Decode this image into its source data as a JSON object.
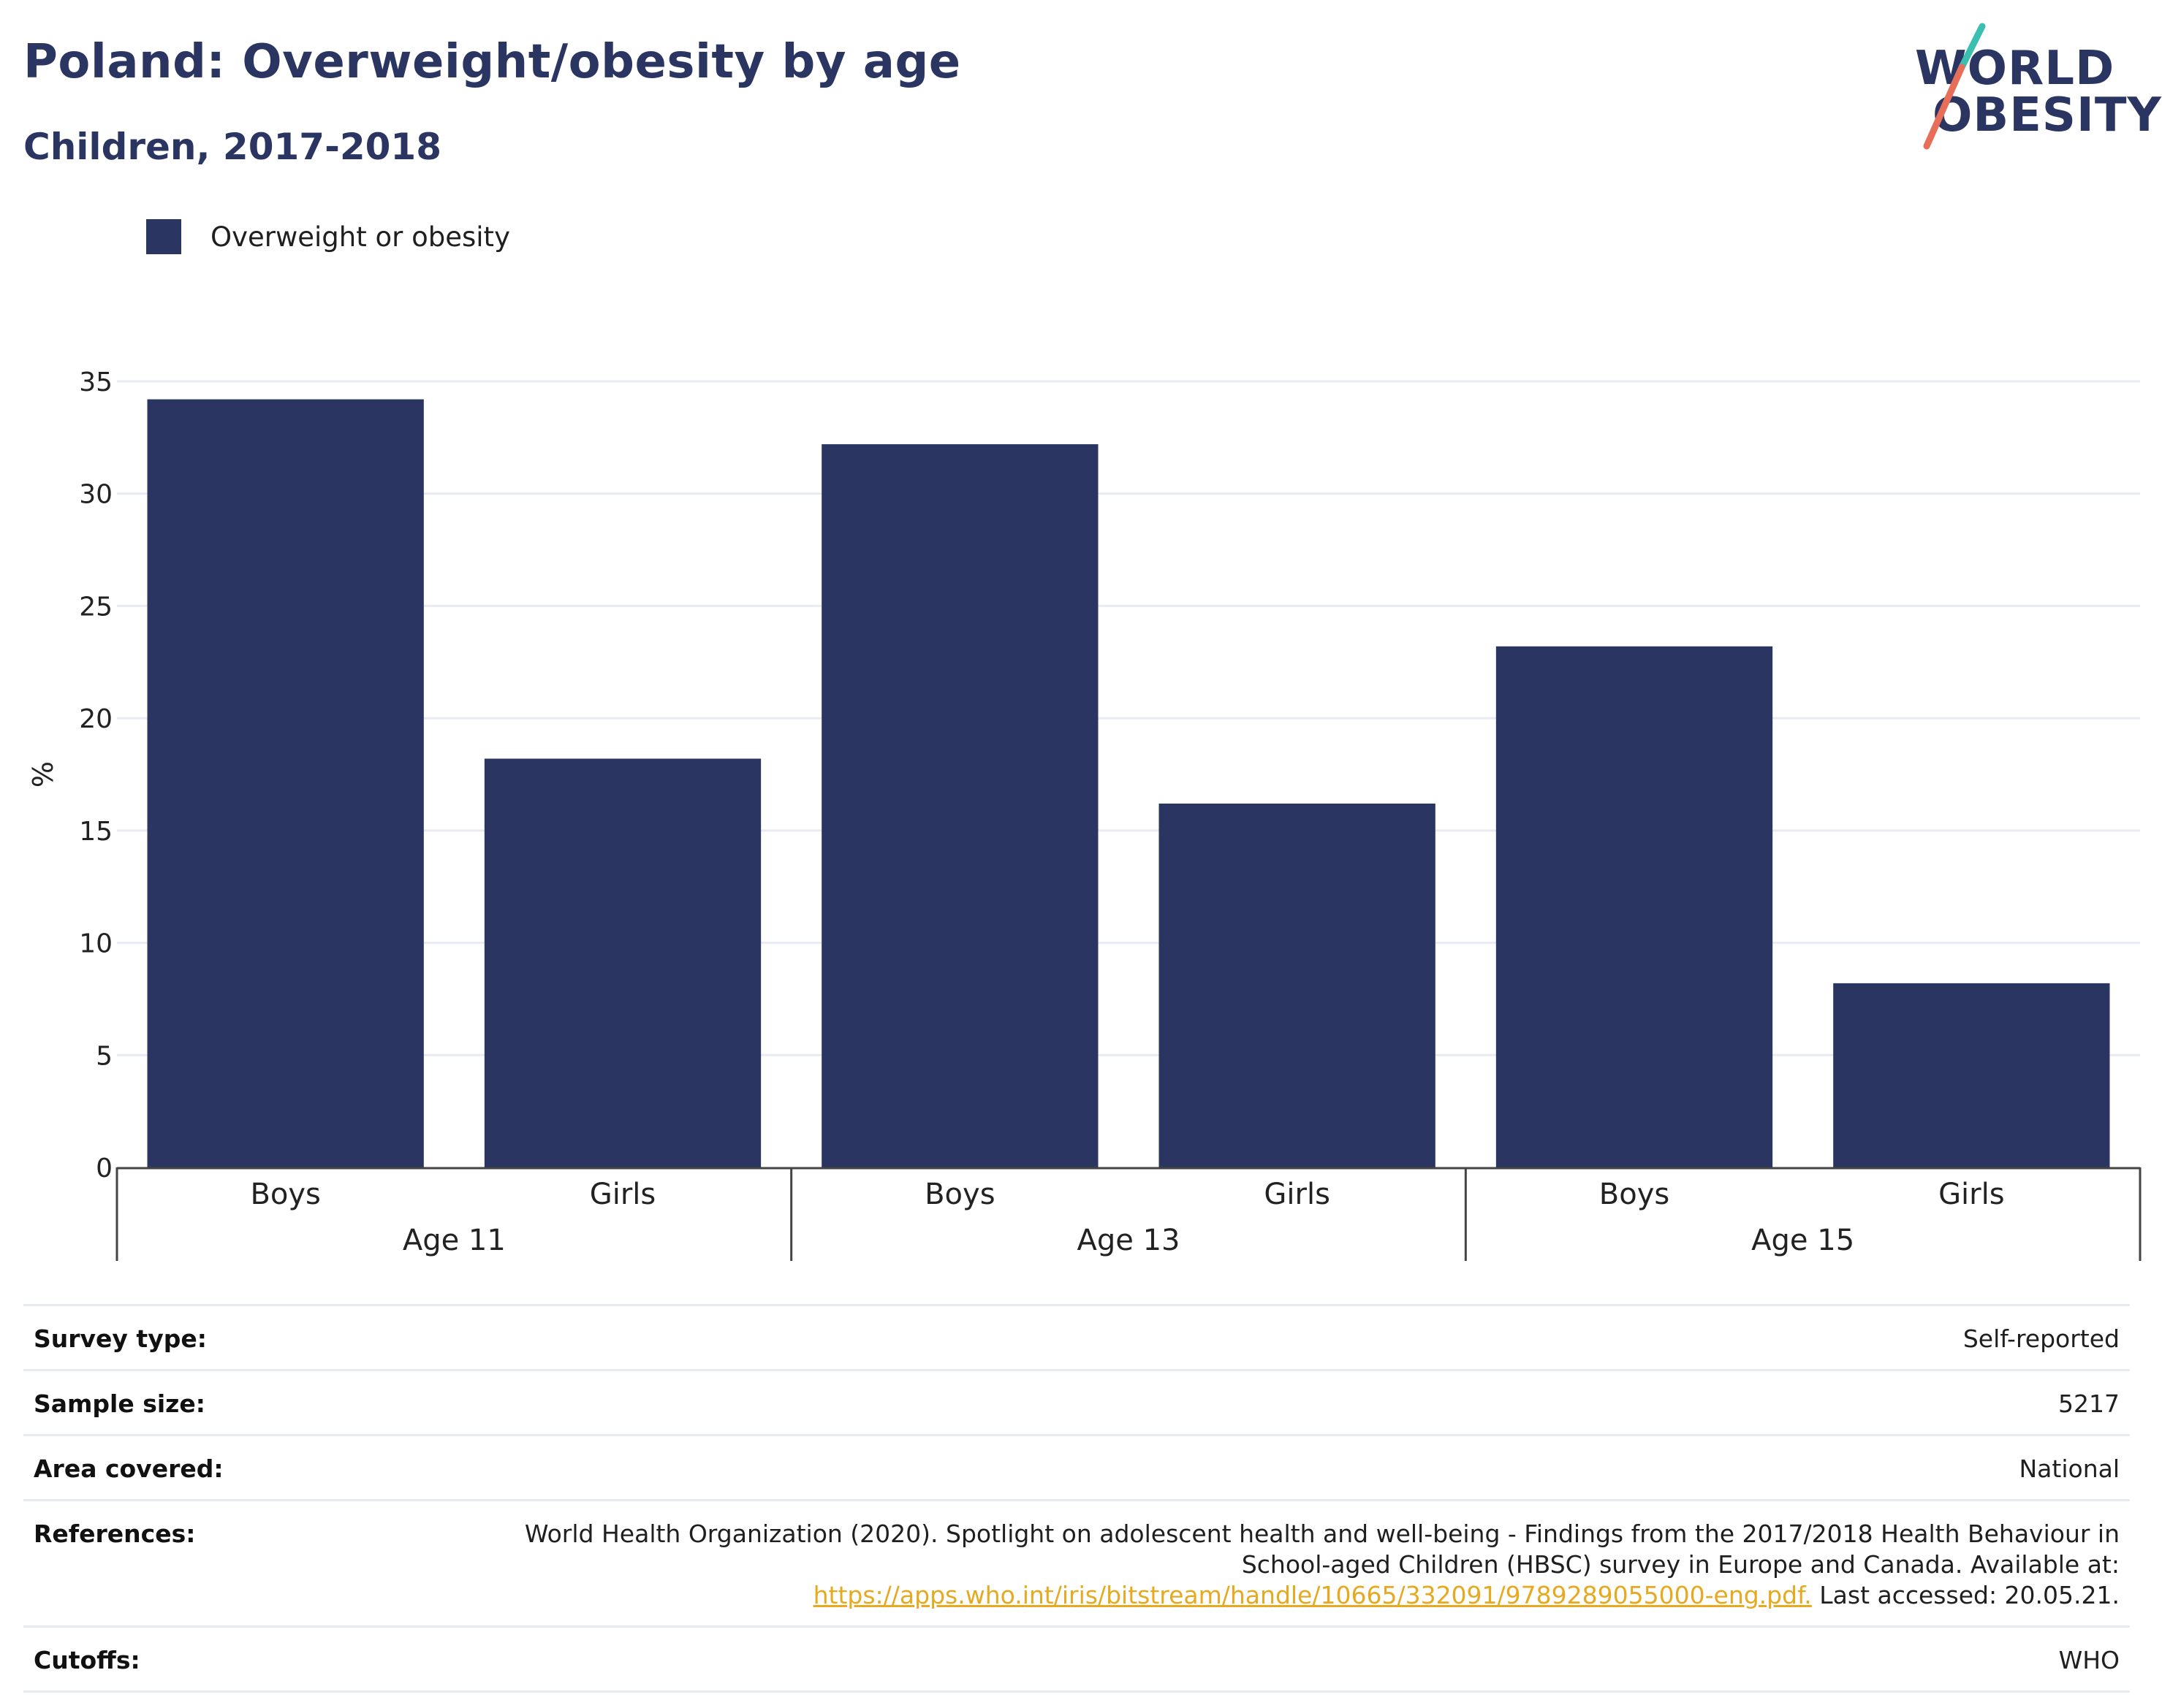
{
  "header": {
    "title": "Poland: Overweight/obesity by age",
    "subtitle": "Children, 2017-2018"
  },
  "logo": {
    "line1": "WORLD",
    "line2": "OBESITY"
  },
  "colors": {
    "bar": "#2b3561",
    "title": "#2b3561",
    "link": "#e6a91f",
    "logo_stroke_top": "#3bbfb0",
    "logo_stroke_bottom": "#e76f5a"
  },
  "chart_data": {
    "type": "bar",
    "title": "Poland: Overweight/obesity by age",
    "subtitle": "Children, 2017-2018",
    "ylabel": "%",
    "ylim": [
      0,
      35
    ],
    "yticks": [
      0,
      5,
      10,
      15,
      20,
      25,
      30,
      35
    ],
    "grid": true,
    "legend_placement": "top-left",
    "groups": [
      "Age 11",
      "Age 13",
      "Age 15"
    ],
    "categories": [
      "Boys",
      "Girls",
      "Boys",
      "Girls",
      "Boys",
      "Girls"
    ],
    "series": [
      {
        "name": "Overweight or obesity",
        "values": [
          34.2,
          18.2,
          32.2,
          16.2,
          23.2,
          8.2
        ]
      }
    ]
  },
  "meta": {
    "survey_type": {
      "label": "Survey type:",
      "value": "Self-reported"
    },
    "sample_size": {
      "label": "Sample size:",
      "value": "5217"
    },
    "area_covered": {
      "label": "Area covered:",
      "value": "National"
    },
    "references": {
      "label": "References:",
      "line1": "World Health Organization (2020). Spotlight on adolescent health and well-being - Findings from the 2017/2018 Health Behaviour in",
      "line2": "School-aged Children (HBSC) survey in Europe and Canada. Available at:",
      "link": "https://apps.who.int/iris/bitstream/handle/10665/332091/9789289055000-eng.pdf.",
      "suffix": " Last accessed: 20.05.21."
    },
    "cutoffs": {
      "label": "Cutoffs:",
      "value": "WHO"
    }
  }
}
